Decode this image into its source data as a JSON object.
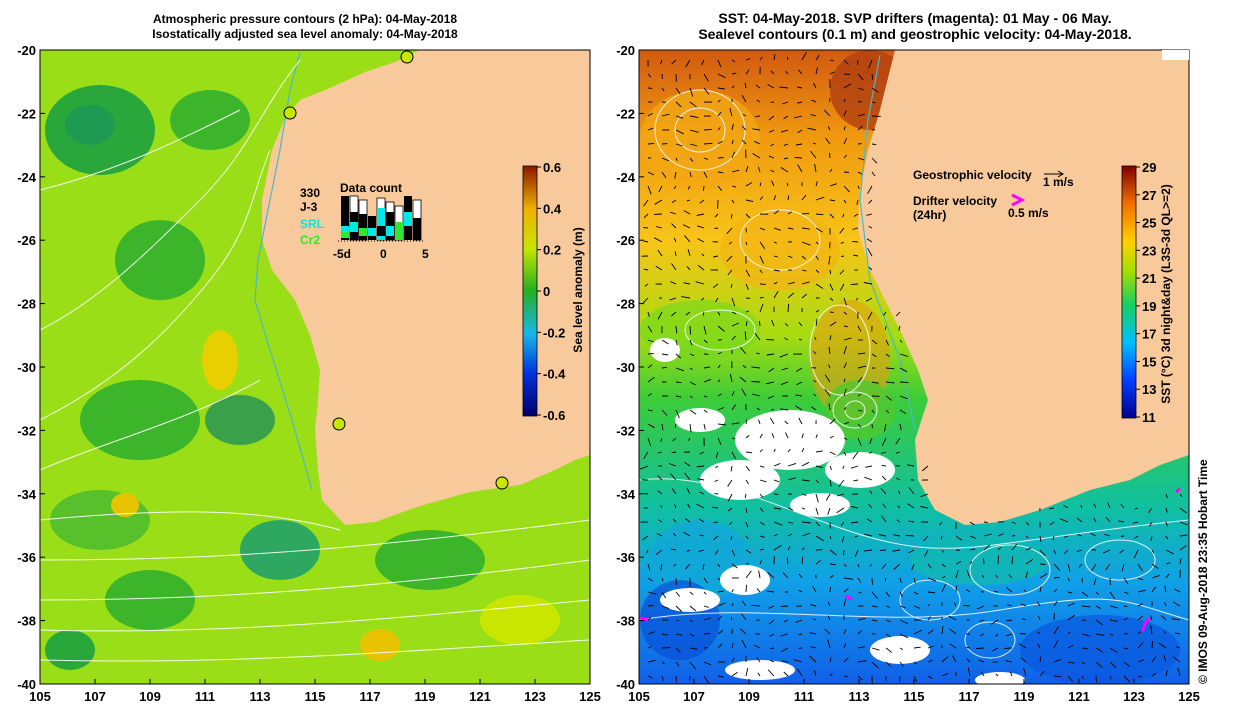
{
  "left_panel": {
    "title_line1": "Atmospheric pressure contours (2 hPa): 04-May-2018",
    "title_line2": "Isostatically adjusted sea level anomaly: 04-May-2018",
    "colorbar": {
      "label": "Sea level anomaly (m)",
      "ticks": [
        "0.6",
        "0.4",
        "0.2",
        "0",
        "-0.2",
        "-0.4",
        "-0.6"
      ],
      "range": [
        -0.6,
        0.6
      ]
    },
    "data_count": {
      "title": "Data count",
      "sat_330": "330",
      "sat_j3": "J-3",
      "sat_srl": "SRL",
      "sat_cr2": "Cr2",
      "axis_labels": [
        "-5d",
        "0",
        "5"
      ]
    },
    "tide_gauges": [
      {
        "lon": 118.5,
        "lat": -20.3
      },
      {
        "lon": 114.2,
        "lat": -22.1
      },
      {
        "lon": 115.8,
        "lat": -31.8
      },
      {
        "lon": 121.9,
        "lat": -33.7
      }
    ]
  },
  "right_panel": {
    "title_line1": "SST: 04-May-2018. SVP drifters (magenta): 01 May - 06 May.",
    "title_line2": "Sealevel contours (0.1 m) and geostrophic velocity: 04-May-2018.",
    "colorbar": {
      "label": "SST (°C) 3d night&day (L3S-3d QL>=2)",
      "ticks": [
        "29",
        "27",
        "25",
        "23",
        "21",
        "19",
        "17",
        "15",
        "13",
        "11"
      ],
      "range": [
        11,
        29
      ]
    },
    "legend": {
      "geo_label": "Geostrophic velocity",
      "geo_scale": "1 m/s",
      "drifter_label": "Drifter velocity",
      "drifter_sub": "(24hr)",
      "drifter_scale": "0.5 m/s"
    }
  },
  "axes": {
    "x_ticks": [
      "105",
      "107",
      "109",
      "111",
      "113",
      "115",
      "117",
      "119",
      "121",
      "123",
      "125"
    ],
    "y_ticks": [
      "-20",
      "-22",
      "-24",
      "-26",
      "-28",
      "-30",
      "-32",
      "-34",
      "-36",
      "-38",
      "-40"
    ],
    "lon_range": [
      105,
      125
    ],
    "lat_range": [
      -40,
      -20
    ]
  },
  "credit": "© IMOS 09-Aug-2018 23:35 Hobart Time",
  "colors": {
    "land": "#f8c99b",
    "coast_line": "#4fb7c8",
    "drifter": "#ff00ff"
  }
}
